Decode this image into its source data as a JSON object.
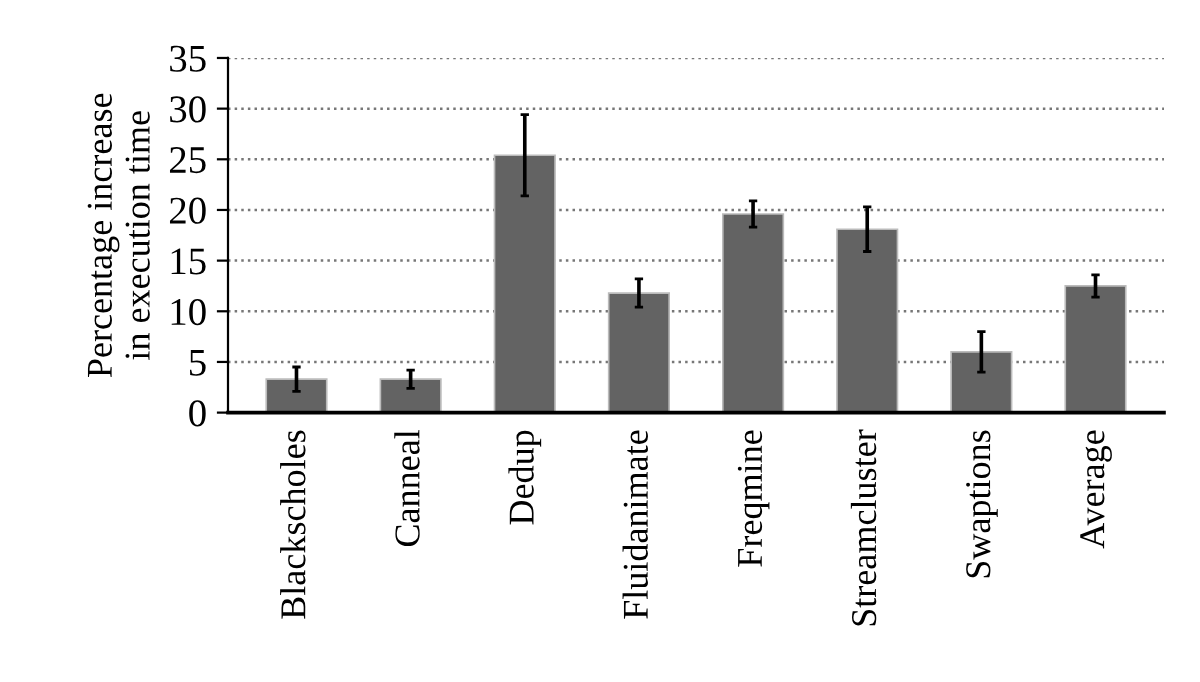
{
  "chart_data": {
    "type": "bar",
    "ylabel": "Percentage increase\nin execution time",
    "categories": [
      "Blackscholes",
      "Canneal",
      "Dedup",
      "Fluidanimate",
      "Freqmine",
      "Streamcluster",
      "Swaptions",
      "Average"
    ],
    "values": [
      3.3,
      3.3,
      25.4,
      11.8,
      19.6,
      18.1,
      6.0,
      12.5
    ],
    "errors": [
      1.2,
      0.9,
      4.0,
      1.4,
      1.3,
      2.2,
      2.0,
      1.1
    ],
    "color": "#636363",
    "ylim": [
      0,
      35
    ],
    "yticks": [
      0,
      5,
      10,
      15,
      20,
      25,
      30,
      35
    ],
    "grid": "y",
    "line_style": "dotted"
  }
}
